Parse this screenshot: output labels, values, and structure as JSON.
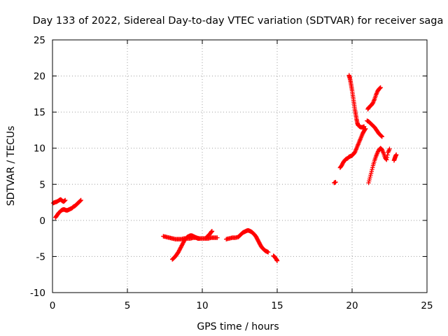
{
  "chart_data": {
    "type": "scatter",
    "title": "Day 133 of 2022, Sidereal Day-to-day VTEC variation (SDTVAR) for receiver saga",
    "xlabel": "GPS time / hours",
    "ylabel": "SDTVAR / TECUs",
    "xlim": [
      0,
      25
    ],
    "ylim": [
      -10,
      25
    ],
    "xticks": [
      0,
      5,
      10,
      15,
      20,
      25
    ],
    "yticks": [
      -10,
      -5,
      0,
      5,
      10,
      15,
      20,
      25
    ],
    "grid": true,
    "legend": "none",
    "marker": "plus",
    "marker_color": "#ff0000",
    "series": [
      {
        "segments": [
          [
            [
              0.05,
              2.4
            ],
            [
              0.15,
              2.5
            ],
            [
              0.3,
              2.6
            ],
            [
              0.45,
              2.8
            ],
            [
              0.55,
              2.9
            ],
            [
              0.65,
              2.7
            ],
            [
              0.75,
              2.6
            ],
            [
              0.85,
              2.8
            ]
          ],
          [
            [
              0.2,
              0.4
            ],
            [
              0.3,
              0.7
            ],
            [
              0.4,
              1.0
            ],
            [
              0.5,
              1.2
            ],
            [
              0.6,
              1.4
            ],
            [
              0.7,
              1.5
            ],
            [
              0.8,
              1.5
            ],
            [
              0.9,
              1.4
            ],
            [
              1.0,
              1.4
            ],
            [
              1.1,
              1.5
            ],
            [
              1.2,
              1.6
            ],
            [
              1.3,
              1.7
            ],
            [
              1.4,
              1.9
            ],
            [
              1.5,
              2.0
            ],
            [
              1.6,
              2.2
            ],
            [
              1.7,
              2.4
            ],
            [
              1.8,
              2.6
            ],
            [
              1.9,
              2.8
            ]
          ],
          [
            [
              7.4,
              -2.2
            ],
            [
              7.6,
              -2.3
            ],
            [
              7.8,
              -2.4
            ],
            [
              8.0,
              -2.5
            ],
            [
              8.2,
              -2.6
            ],
            [
              8.4,
              -2.6
            ],
            [
              8.6,
              -2.6
            ],
            [
              8.8,
              -2.5
            ],
            [
              9.0,
              -2.5
            ],
            [
              9.2,
              -2.5
            ],
            [
              9.4,
              -2.4
            ],
            [
              9.6,
              -2.4
            ],
            [
              9.8,
              -2.5
            ],
            [
              10.0,
              -2.5
            ],
            [
              10.2,
              -2.5
            ],
            [
              10.4,
              -2.5
            ],
            [
              10.6,
              -2.4
            ],
            [
              10.8,
              -2.4
            ],
            [
              11.0,
              -2.4
            ]
          ],
          [
            [
              8.0,
              -5.4
            ],
            [
              8.1,
              -5.2
            ],
            [
              8.2,
              -5.0
            ],
            [
              8.3,
              -4.7
            ],
            [
              8.4,
              -4.4
            ],
            [
              8.5,
              -4.0
            ],
            [
              8.6,
              -3.6
            ],
            [
              8.7,
              -3.2
            ],
            [
              8.8,
              -2.8
            ],
            [
              8.9,
              -2.5
            ],
            [
              9.0,
              -2.3
            ],
            [
              9.1,
              -2.2
            ],
            [
              9.2,
              -2.1
            ],
            [
              9.3,
              -2.1
            ],
            [
              9.4,
              -2.2
            ],
            [
              9.5,
              -2.3
            ],
            [
              9.6,
              -2.4
            ],
            [
              9.7,
              -2.5
            ],
            [
              9.8,
              -2.5
            ]
          ],
          [
            [
              10.3,
              -2.3
            ],
            [
              10.4,
              -2.1
            ],
            [
              10.5,
              -1.9
            ],
            [
              10.6,
              -1.6
            ],
            [
              10.65,
              -1.5
            ]
          ],
          [
            [
              11.6,
              -2.6
            ],
            [
              11.8,
              -2.5
            ],
            [
              12.0,
              -2.4
            ],
            [
              12.2,
              -2.4
            ],
            [
              12.4,
              -2.3
            ],
            [
              12.5,
              -2.1
            ],
            [
              12.6,
              -1.9
            ],
            [
              12.7,
              -1.7
            ],
            [
              12.8,
              -1.6
            ],
            [
              12.9,
              -1.5
            ],
            [
              13.0,
              -1.4
            ],
            [
              13.1,
              -1.4
            ],
            [
              13.2,
              -1.5
            ],
            [
              13.3,
              -1.6
            ],
            [
              13.4,
              -1.8
            ],
            [
              13.5,
              -2.0
            ],
            [
              13.6,
              -2.3
            ],
            [
              13.7,
              -2.7
            ],
            [
              13.8,
              -3.1
            ],
            [
              13.9,
              -3.5
            ],
            [
              14.0,
              -3.8
            ],
            [
              14.1,
              -4.0
            ],
            [
              14.2,
              -4.2
            ],
            [
              14.3,
              -4.3
            ],
            [
              14.4,
              -4.4
            ]
          ],
          [
            [
              14.75,
              -4.9
            ],
            [
              14.85,
              -5.1
            ],
            [
              14.95,
              -5.4
            ],
            [
              15.0,
              -5.6
            ]
          ],
          [
            [
              18.8,
              5.2
            ],
            [
              18.9,
              5.3
            ]
          ],
          [
            [
              19.2,
              7.3
            ],
            [
              19.3,
              7.6
            ],
            [
              19.4,
              8.0
            ],
            [
              19.5,
              8.3
            ],
            [
              19.6,
              8.5
            ],
            [
              19.7,
              8.6
            ],
            [
              19.8,
              8.8
            ],
            [
              19.9,
              8.9
            ],
            [
              20.0,
              9.0
            ],
            [
              20.1,
              9.2
            ],
            [
              20.2,
              9.5
            ],
            [
              20.3,
              10.0
            ],
            [
              20.4,
              10.5
            ],
            [
              20.5,
              11.0
            ],
            [
              20.6,
              11.5
            ],
            [
              20.7,
              12.0
            ],
            [
              20.8,
              12.4
            ],
            [
              20.9,
              12.7
            ]
          ],
          [
            [
              19.8,
              20.1
            ],
            [
              19.85,
              19.7
            ],
            [
              19.9,
              19.2
            ],
            [
              19.95,
              18.6
            ],
            [
              20.0,
              18.0
            ],
            [
              20.05,
              17.3
            ],
            [
              20.1,
              16.6
            ],
            [
              20.15,
              15.9
            ],
            [
              20.2,
              15.2
            ],
            [
              20.25,
              14.6
            ],
            [
              20.3,
              14.0
            ],
            [
              20.35,
              13.5
            ],
            [
              20.4,
              13.2
            ],
            [
              20.5,
              13.0
            ],
            [
              20.6,
              12.9
            ],
            [
              20.7,
              12.9
            ],
            [
              20.8,
              13.0
            ]
          ],
          [
            [
              21.05,
              15.4
            ],
            [
              21.1,
              15.6
            ],
            [
              21.2,
              15.8
            ],
            [
              21.3,
              16.0
            ],
            [
              21.4,
              16.3
            ],
            [
              21.5,
              16.8
            ],
            [
              21.6,
              17.4
            ],
            [
              21.7,
              17.9
            ],
            [
              21.8,
              18.2
            ],
            [
              21.9,
              18.4
            ]
          ],
          [
            [
              21.0,
              13.8
            ],
            [
              21.1,
              13.7
            ],
            [
              21.2,
              13.5
            ],
            [
              21.3,
              13.3
            ],
            [
              21.4,
              13.1
            ],
            [
              21.5,
              12.9
            ],
            [
              21.6,
              12.6
            ],
            [
              21.7,
              12.3
            ],
            [
              21.8,
              12.0
            ],
            [
              21.9,
              11.8
            ],
            [
              22.0,
              11.6
            ]
          ],
          [
            [
              21.1,
              5.2
            ],
            [
              21.2,
              6.0
            ],
            [
              21.3,
              6.8
            ],
            [
              21.4,
              7.6
            ],
            [
              21.5,
              8.3
            ],
            [
              21.6,
              8.9
            ],
            [
              21.7,
              9.4
            ],
            [
              21.8,
              9.8
            ],
            [
              21.9,
              10.0
            ],
            [
              22.0,
              9.8
            ],
            [
              22.1,
              9.3
            ],
            [
              22.2,
              8.7
            ],
            [
              22.3,
              8.4
            ],
            [
              22.4,
              9.4
            ],
            [
              22.5,
              9.9
            ]
          ],
          [
            [
              22.8,
              8.3
            ],
            [
              22.85,
              8.6
            ],
            [
              22.9,
              8.9
            ],
            [
              22.95,
              9.1
            ]
          ]
        ]
      }
    ]
  }
}
